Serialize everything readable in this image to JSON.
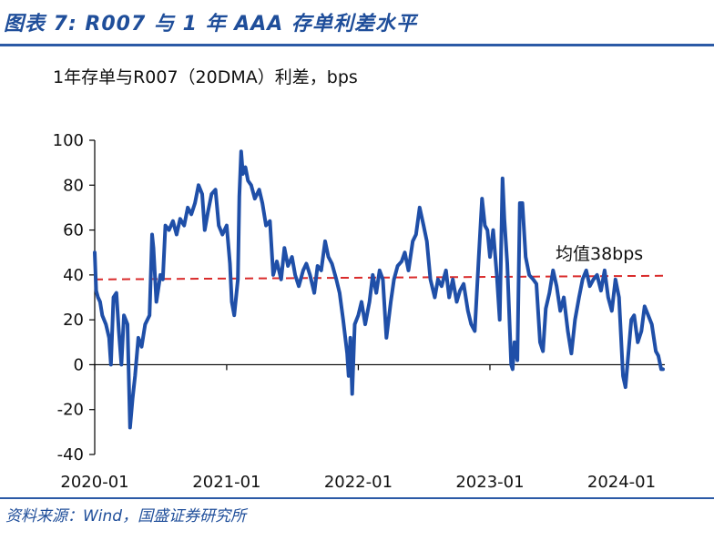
{
  "header": {
    "figure_title": "图表 7: R007 与 1 年 AAA 存单利差水平"
  },
  "footer": {
    "source": "资料来源：Wind，国盛证券研究所"
  },
  "colors": {
    "series": "#1f4fa8",
    "mean_line": "#d92b2b",
    "accent": "#1f4e9a"
  },
  "chart_data": {
    "type": "line",
    "title": "1年存单与R007（20DMA）利差，bps",
    "xlabel": "",
    "ylabel": "",
    "ylim": [
      -40,
      100
    ],
    "yticks": [
      -40,
      -20,
      0,
      20,
      40,
      60,
      80,
      100
    ],
    "xlim": [
      "2020-01-01",
      "2024-04-30"
    ],
    "xticks": [
      "2020-01",
      "2021-01",
      "2022-01",
      "2023-01",
      "2024-01"
    ],
    "grid": false,
    "series": [
      {
        "values": [
          [
            "2020-01-01",
            50
          ],
          [
            "2020-01-05",
            33
          ],
          [
            "2020-01-10",
            30
          ],
          [
            "2020-01-16",
            28
          ],
          [
            "2020-01-22",
            22
          ],
          [
            "2020-02-01",
            18
          ],
          [
            "2020-02-10",
            12
          ],
          [
            "2020-02-15",
            0
          ],
          [
            "2020-02-22",
            30
          ],
          [
            "2020-03-01",
            32
          ],
          [
            "2020-03-08",
            15
          ],
          [
            "2020-03-15",
            0
          ],
          [
            "2020-03-22",
            22
          ],
          [
            "2020-04-01",
            18
          ],
          [
            "2020-04-08",
            -28
          ],
          [
            "2020-04-15",
            -15
          ],
          [
            "2020-04-22",
            -5
          ],
          [
            "2020-05-01",
            12
          ],
          [
            "2020-05-10",
            8
          ],
          [
            "2020-05-20",
            18
          ],
          [
            "2020-06-01",
            22
          ],
          [
            "2020-06-08",
            58
          ],
          [
            "2020-06-12",
            52
          ],
          [
            "2020-06-20",
            28
          ],
          [
            "2020-07-01",
            40
          ],
          [
            "2020-07-08",
            38
          ],
          [
            "2020-07-15",
            62
          ],
          [
            "2020-07-25",
            60
          ],
          [
            "2020-08-05",
            64
          ],
          [
            "2020-08-15",
            58
          ],
          [
            "2020-08-25",
            65
          ],
          [
            "2020-09-05",
            62
          ],
          [
            "2020-09-15",
            70
          ],
          [
            "2020-09-25",
            67
          ],
          [
            "2020-10-05",
            72
          ],
          [
            "2020-10-15",
            80
          ],
          [
            "2020-10-25",
            76
          ],
          [
            "2020-11-01",
            60
          ],
          [
            "2020-11-10",
            68
          ],
          [
            "2020-11-20",
            76
          ],
          [
            "2020-12-01",
            78
          ],
          [
            "2020-12-10",
            62
          ],
          [
            "2020-12-20",
            58
          ],
          [
            "2021-01-01",
            62
          ],
          [
            "2021-01-10",
            45
          ],
          [
            "2021-01-15",
            28
          ],
          [
            "2021-01-22",
            22
          ],
          [
            "2021-02-01",
            38
          ],
          [
            "2021-02-05",
            75
          ],
          [
            "2021-02-10",
            95
          ],
          [
            "2021-02-15",
            85
          ],
          [
            "2021-02-22",
            88
          ],
          [
            "2021-03-01",
            82
          ],
          [
            "2021-03-10",
            80
          ],
          [
            "2021-03-20",
            74
          ],
          [
            "2021-04-01",
            78
          ],
          [
            "2021-04-10",
            72
          ],
          [
            "2021-04-20",
            62
          ],
          [
            "2021-05-01",
            64
          ],
          [
            "2021-05-10",
            40
          ],
          [
            "2021-05-20",
            46
          ],
          [
            "2021-06-01",
            38
          ],
          [
            "2021-06-10",
            52
          ],
          [
            "2021-06-20",
            44
          ],
          [
            "2021-07-01",
            48
          ],
          [
            "2021-07-10",
            40
          ],
          [
            "2021-07-20",
            35
          ],
          [
            "2021-08-01",
            42
          ],
          [
            "2021-08-10",
            45
          ],
          [
            "2021-08-20",
            40
          ],
          [
            "2021-09-01",
            32
          ],
          [
            "2021-09-10",
            44
          ],
          [
            "2021-09-20",
            42
          ],
          [
            "2021-10-01",
            55
          ],
          [
            "2021-10-10",
            48
          ],
          [
            "2021-10-20",
            45
          ],
          [
            "2021-11-01",
            38
          ],
          [
            "2021-11-10",
            32
          ],
          [
            "2021-11-20",
            20
          ],
          [
            "2021-12-01",
            5
          ],
          [
            "2021-12-05",
            -5
          ],
          [
            "2021-12-10",
            12
          ],
          [
            "2021-12-15",
            -13
          ],
          [
            "2021-12-22",
            18
          ],
          [
            "2022-01-01",
            22
          ],
          [
            "2022-01-10",
            28
          ],
          [
            "2022-01-20",
            18
          ],
          [
            "2022-02-01",
            28
          ],
          [
            "2022-02-10",
            40
          ],
          [
            "2022-02-20",
            32
          ],
          [
            "2022-03-01",
            42
          ],
          [
            "2022-03-10",
            38
          ],
          [
            "2022-03-20",
            12
          ],
          [
            "2022-04-01",
            28
          ],
          [
            "2022-04-10",
            38
          ],
          [
            "2022-04-20",
            44
          ],
          [
            "2022-05-01",
            46
          ],
          [
            "2022-05-10",
            50
          ],
          [
            "2022-05-20",
            42
          ],
          [
            "2022-06-01",
            55
          ],
          [
            "2022-06-10",
            58
          ],
          [
            "2022-06-20",
            70
          ],
          [
            "2022-07-01",
            62
          ],
          [
            "2022-07-10",
            55
          ],
          [
            "2022-07-20",
            38
          ],
          [
            "2022-08-01",
            30
          ],
          [
            "2022-08-10",
            38
          ],
          [
            "2022-08-20",
            35
          ],
          [
            "2022-09-01",
            42
          ],
          [
            "2022-09-10",
            30
          ],
          [
            "2022-09-20",
            38
          ],
          [
            "2022-10-01",
            28
          ],
          [
            "2022-10-10",
            33
          ],
          [
            "2022-10-20",
            36
          ],
          [
            "2022-11-01",
            24
          ],
          [
            "2022-11-10",
            18
          ],
          [
            "2022-11-20",
            15
          ],
          [
            "2022-12-01",
            48
          ],
          [
            "2022-12-10",
            74
          ],
          [
            "2022-12-18",
            62
          ],
          [
            "2022-12-25",
            60
          ],
          [
            "2023-01-01",
            48
          ],
          [
            "2023-01-10",
            60
          ],
          [
            "2023-01-20",
            40
          ],
          [
            "2023-01-28",
            20
          ],
          [
            "2023-02-05",
            83
          ],
          [
            "2023-02-10",
            65
          ],
          [
            "2023-02-18",
            45
          ],
          [
            "2023-03-01",
            0
          ],
          [
            "2023-03-05",
            -2
          ],
          [
            "2023-03-10",
            10
          ],
          [
            "2023-03-18",
            2
          ],
          [
            "2023-03-25",
            72
          ],
          [
            "2023-04-01",
            72
          ],
          [
            "2023-04-10",
            48
          ],
          [
            "2023-04-20",
            40
          ],
          [
            "2023-05-01",
            38
          ],
          [
            "2023-05-10",
            36
          ],
          [
            "2023-05-20",
            10
          ],
          [
            "2023-05-28",
            6
          ],
          [
            "2023-06-05",
            25
          ],
          [
            "2023-06-15",
            32
          ],
          [
            "2023-06-25",
            42
          ],
          [
            "2023-07-05",
            35
          ],
          [
            "2023-07-15",
            24
          ],
          [
            "2023-07-25",
            30
          ],
          [
            "2023-08-05",
            15
          ],
          [
            "2023-08-15",
            5
          ],
          [
            "2023-08-25",
            20
          ],
          [
            "2023-09-05",
            30
          ],
          [
            "2023-09-15",
            38
          ],
          [
            "2023-09-25",
            42
          ],
          [
            "2023-10-05",
            35
          ],
          [
            "2023-10-15",
            38
          ],
          [
            "2023-10-25",
            40
          ],
          [
            "2023-11-05",
            33
          ],
          [
            "2023-11-15",
            42
          ],
          [
            "2023-11-25",
            30
          ],
          [
            "2023-12-05",
            24
          ],
          [
            "2023-12-15",
            38
          ],
          [
            "2023-12-25",
            30
          ],
          [
            "2024-01-05",
            -5
          ],
          [
            "2024-01-12",
            -10
          ],
          [
            "2024-01-20",
            5
          ],
          [
            "2024-01-28",
            20
          ],
          [
            "2024-02-05",
            22
          ],
          [
            "2024-02-15",
            10
          ],
          [
            "2024-02-25",
            15
          ],
          [
            "2024-03-05",
            26
          ],
          [
            "2024-03-15",
            22
          ],
          [
            "2024-03-25",
            18
          ],
          [
            "2024-04-05",
            6
          ],
          [
            "2024-04-12",
            4
          ],
          [
            "2024-04-20",
            -2
          ],
          [
            "2024-04-25",
            -2
          ]
        ]
      }
    ],
    "reference_line": {
      "value": 38,
      "label": "均值38bps"
    }
  }
}
